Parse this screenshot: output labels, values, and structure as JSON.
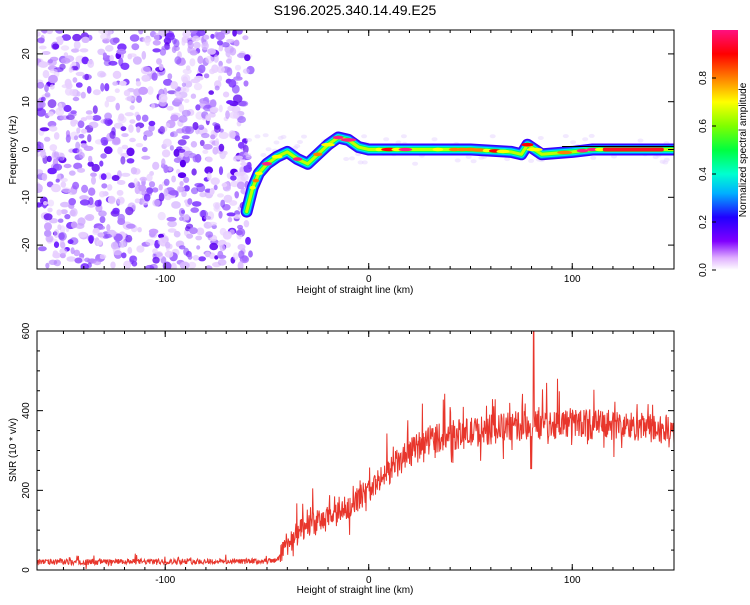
{
  "title": "S196.2025.340.14.49.E25",
  "chart_data": [
    {
      "type": "heatmap",
      "xlabel": "Height of straight line (km)",
      "ylabel": "Frequency (Hz)",
      "xlim": [
        -163,
        150
      ],
      "ylim": [
        -25,
        25
      ],
      "x_ticks": [
        -100,
        0,
        100
      ],
      "y_ticks": [
        -20,
        -10,
        0,
        10,
        20
      ],
      "noise_region_x_max": -60,
      "ridge": [
        {
          "x": -60,
          "y": -13
        },
        {
          "x": -57,
          "y": -8
        },
        {
          "x": -54,
          "y": -5
        },
        {
          "x": -50,
          "y": -3
        },
        {
          "x": -45,
          "y": -1.5
        },
        {
          "x": -40,
          "y": -0.5
        },
        {
          "x": -35,
          "y": -2
        },
        {
          "x": -30,
          "y": -3
        },
        {
          "x": -25,
          "y": -1
        },
        {
          "x": -20,
          "y": 1
        },
        {
          "x": -15,
          "y": 2.5
        },
        {
          "x": -10,
          "y": 2
        },
        {
          "x": -5,
          "y": 0.5
        },
        {
          "x": 0,
          "y": 0
        },
        {
          "x": 10,
          "y": 0
        },
        {
          "x": 30,
          "y": 0
        },
        {
          "x": 50,
          "y": 0
        },
        {
          "x": 70,
          "y": -0.5
        },
        {
          "x": 75,
          "y": -1
        },
        {
          "x": 78,
          "y": 1
        },
        {
          "x": 85,
          "y": -1
        },
        {
          "x": 100,
          "y": -0.5
        },
        {
          "x": 110,
          "y": 0
        },
        {
          "x": 150,
          "y": 0
        }
      ]
    },
    {
      "type": "line",
      "xlabel": "Height of straight line (km)",
      "ylabel": "SNR (10 * v/v)",
      "xlim": [
        -163,
        150
      ],
      "ylim": [
        0,
        600
      ],
      "x_ticks": [
        -100,
        0,
        100
      ],
      "y_ticks": [
        0,
        200,
        400,
        600
      ],
      "color": "#e8362c",
      "trend": [
        {
          "x": -163,
          "y": 20
        },
        {
          "x": -45,
          "y": 22
        },
        {
          "x": -42,
          "y": 60
        },
        {
          "x": -30,
          "y": 110
        },
        {
          "x": -15,
          "y": 140
        },
        {
          "x": 0,
          "y": 200
        },
        {
          "x": 15,
          "y": 270
        },
        {
          "x": 30,
          "y": 330
        },
        {
          "x": 50,
          "y": 345
        },
        {
          "x": 70,
          "y": 360
        },
        {
          "x": 100,
          "y": 370
        },
        {
          "x": 130,
          "y": 360
        },
        {
          "x": 150,
          "y": 350
        }
      ],
      "peak": {
        "x": 81,
        "y": 600
      }
    }
  ],
  "colorbar": {
    "label": "Normalized spectral amplitude",
    "range": [
      0,
      1
    ],
    "ticks": [
      "0.0",
      "0.2",
      "0.4",
      "0.6",
      "0.8"
    ],
    "tick_values": [
      0,
      0.2,
      0.4,
      0.6,
      0.8
    ],
    "colors": [
      "#ffffff",
      "#c080ff",
      "#6a00ff",
      "#0000ff",
      "#00e0ff",
      "#00ff40",
      "#c0ff00",
      "#ffff00",
      "#ff8000",
      "#ff0000",
      "#ff0080"
    ]
  }
}
